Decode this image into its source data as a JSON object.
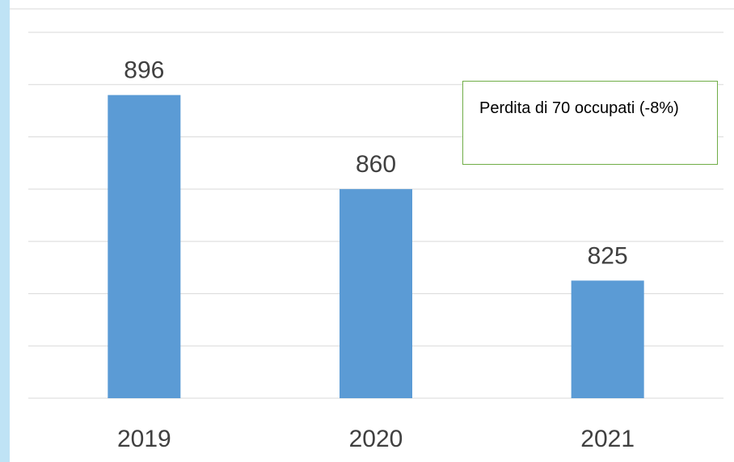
{
  "chart_data": {
    "type": "bar",
    "categories": [
      "2019",
      "2020",
      "2021"
    ],
    "values": [
      896,
      860,
      825
    ],
    "color": "#5b9bd5",
    "ylim": [
      780,
      920
    ],
    "yticks": [
      780,
      800,
      820,
      840,
      860,
      880,
      900,
      920
    ],
    "grid": true,
    "annotation": "Perdita di 70 occupati (-8%)"
  }
}
